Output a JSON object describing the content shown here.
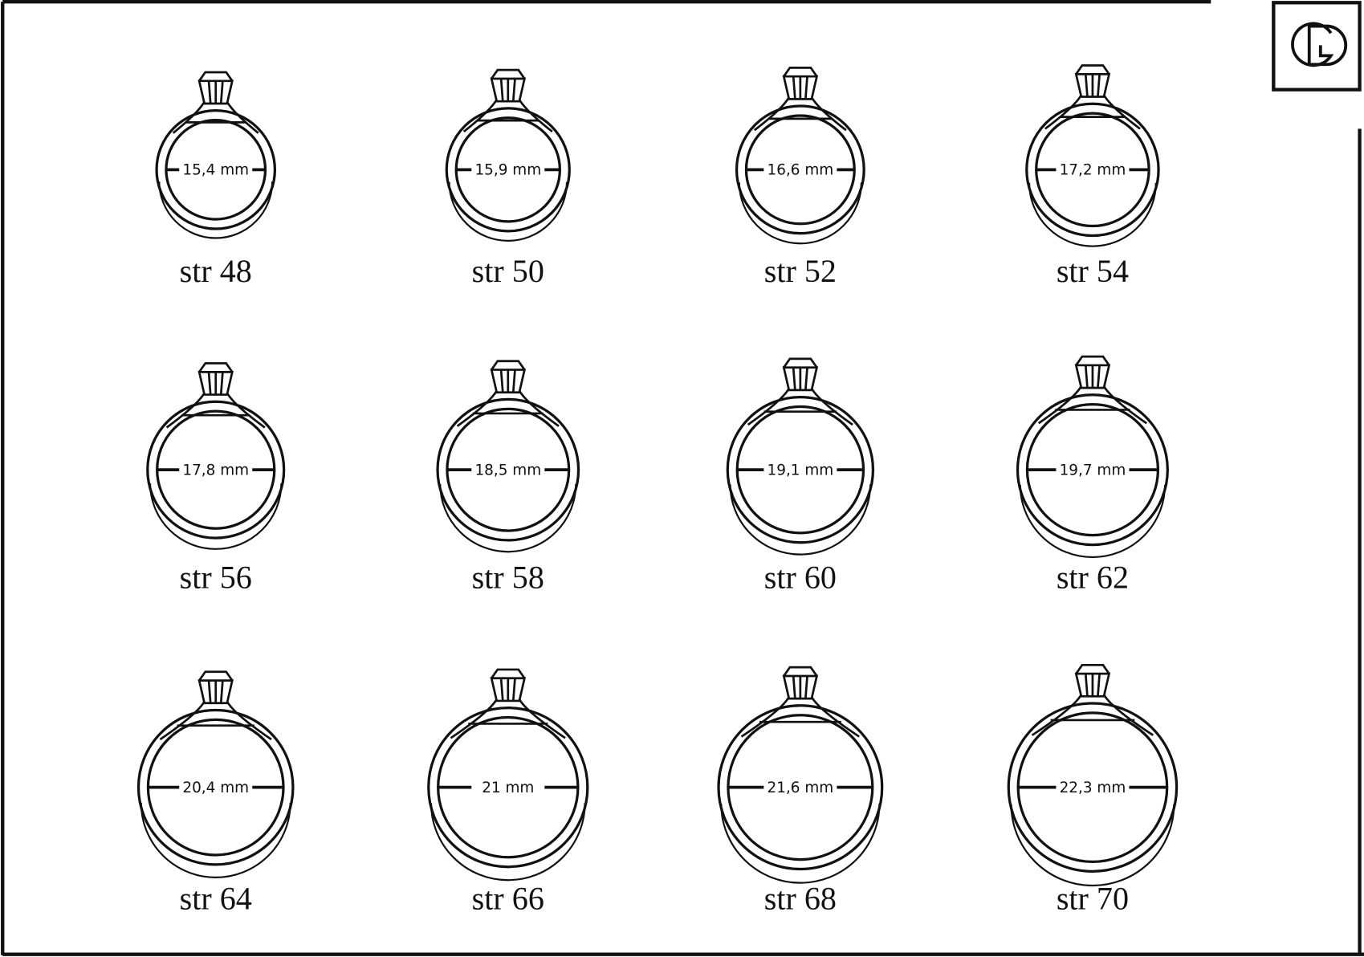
{
  "rings": [
    {
      "size_label": "str 48",
      "diameter": "15,4 mm"
    },
    {
      "size_label": "str 50",
      "diameter": "15,9 mm"
    },
    {
      "size_label": "str 52",
      "diameter": "16,6 mm"
    },
    {
      "size_label": "str 54",
      "diameter": "17,2 mm"
    },
    {
      "size_label": "str 56",
      "diameter": "17,8 mm"
    },
    {
      "size_label": "str 58",
      "diameter": "18,5 mm"
    },
    {
      "size_label": "str 60",
      "diameter": "19,1 mm"
    },
    {
      "size_label": "str 62",
      "diameter": "19,7 mm"
    },
    {
      "size_label": "str 64",
      "diameter": "20,4 mm"
    },
    {
      "size_label": "str 66",
      "diameter": "21 mm"
    },
    {
      "size_label": "str 68",
      "diameter": "21,6 mm"
    },
    {
      "size_label": "str 70",
      "diameter": "22,3 mm"
    }
  ]
}
